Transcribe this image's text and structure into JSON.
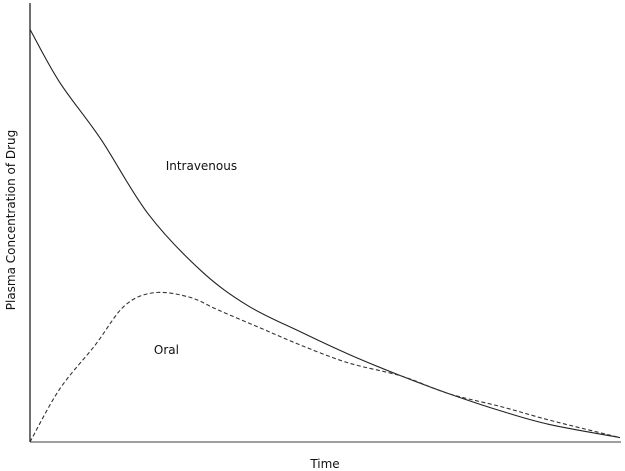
{
  "chart_data": {
    "type": "line",
    "title": "",
    "xlabel": "Time",
    "ylabel": "Plasma Concentration of Drug",
    "xlim": [
      0,
      100
    ],
    "ylim": [
      0,
      100
    ],
    "grid": false,
    "ticks": false,
    "series": [
      {
        "name": "Intravenous",
        "style": "solid",
        "color": "#222222",
        "x": [
          0,
          5,
          12,
          20,
          29,
          37,
          46,
          54,
          63,
          71,
          80,
          88,
          100
        ],
        "y": [
          94,
          82,
          69,
          52,
          39,
          31,
          25,
          20,
          15,
          11,
          7,
          4,
          1
        ]
      },
      {
        "name": "Oral",
        "style": "dashed",
        "color": "#333333",
        "x": [
          0,
          5,
          11,
          16,
          21,
          27,
          32,
          39,
          46,
          54,
          63,
          71,
          80,
          88,
          100
        ],
        "y": [
          0,
          12,
          22,
          31,
          34,
          33,
          30,
          26,
          22,
          18,
          15,
          11,
          8,
          5,
          1
        ]
      }
    ],
    "annotations": [
      {
        "text": "Intravenous",
        "x": 23,
        "y": 62
      },
      {
        "text": "Oral",
        "x": 21,
        "y": 20
      }
    ]
  }
}
